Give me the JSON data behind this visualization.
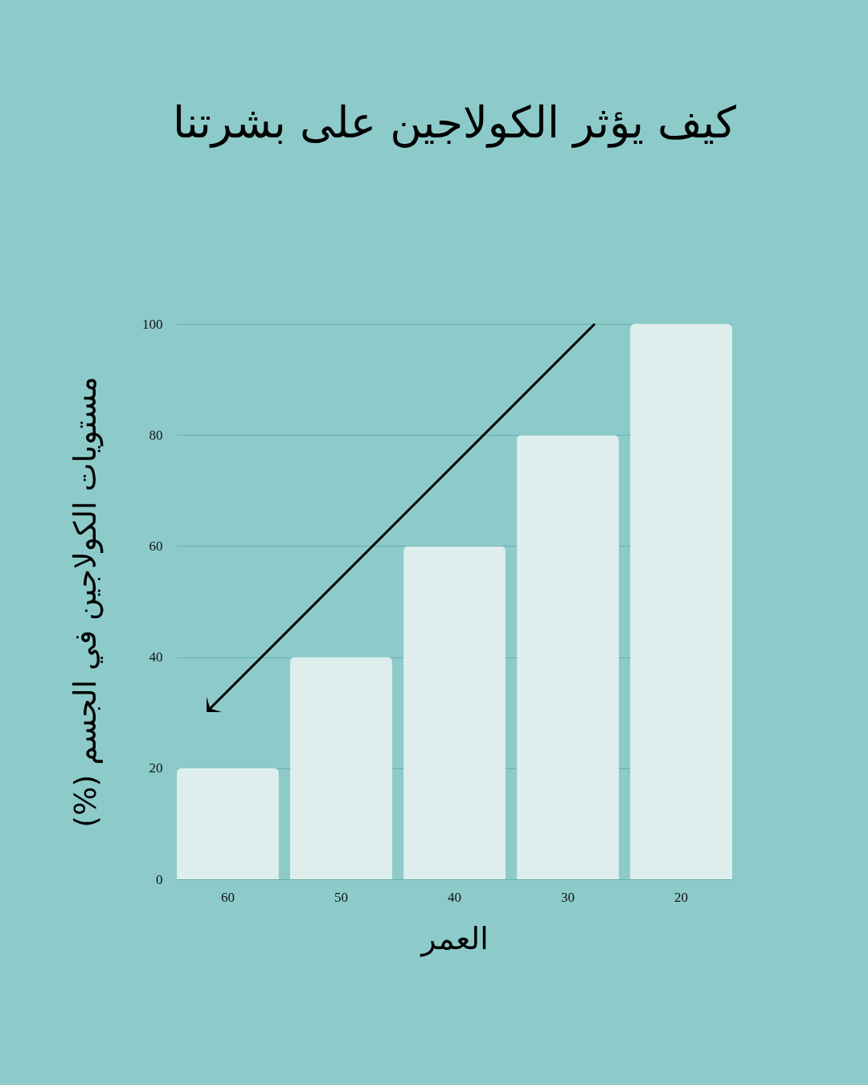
{
  "chart_data": {
    "type": "bar",
    "title": "كيف يؤثر الكولاجين على بشرتنا",
    "xlabel": "العمر",
    "ylabel": "مستويات الكولاجين في الجسم (%)",
    "categories": [
      "60",
      "50",
      "40",
      "30",
      "20"
    ],
    "values": [
      20,
      40,
      60,
      80,
      100
    ],
    "color": "#ddeeed",
    "ylim": [
      0,
      100
    ],
    "yticks": [
      0,
      20,
      40,
      60,
      80,
      100
    ],
    "grid": "y"
  }
}
